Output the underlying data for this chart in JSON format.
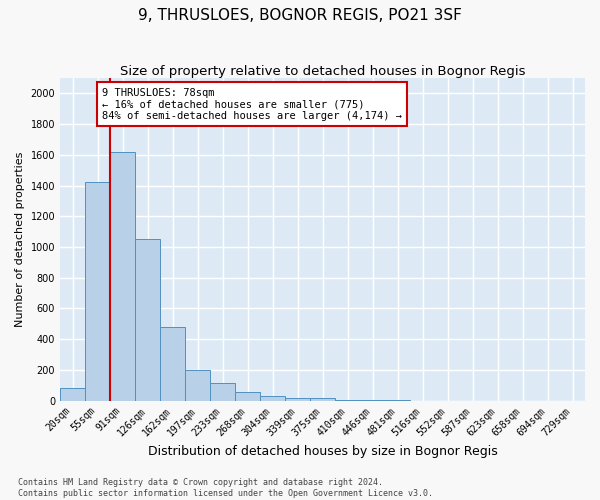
{
  "title": "9, THRUSLOES, BOGNOR REGIS, PO21 3SF",
  "subtitle": "Size of property relative to detached houses in Bognor Regis",
  "xlabel": "Distribution of detached houses by size in Bognor Regis",
  "ylabel": "Number of detached properties",
  "bar_labels": [
    "20sqm",
    "55sqm",
    "91sqm",
    "126sqm",
    "162sqm",
    "197sqm",
    "233sqm",
    "268sqm",
    "304sqm",
    "339sqm",
    "375sqm",
    "410sqm",
    "446sqm",
    "481sqm",
    "516sqm",
    "552sqm",
    "587sqm",
    "623sqm",
    "658sqm",
    "694sqm",
    "729sqm"
  ],
  "bar_values": [
    80,
    1420,
    1620,
    1050,
    480,
    200,
    115,
    55,
    30,
    20,
    15,
    7,
    3,
    2,
    1,
    1,
    1,
    0,
    0,
    0,
    0
  ],
  "bar_color": "#b8d0e8",
  "bar_edge_color": "#5090c0",
  "vline_color": "#cc0000",
  "vline_x_index": 1.5,
  "annotation_text": "9 THRUSLOES: 78sqm\n← 16% of detached houses are smaller (775)\n84% of semi-detached houses are larger (4,174) →",
  "annotation_box_color": "#ffffff",
  "annotation_box_edge": "#cc0000",
  "ylim_max": 2100,
  "yticks": [
    0,
    200,
    400,
    600,
    800,
    1000,
    1200,
    1400,
    1600,
    1800,
    2000
  ],
  "footer": "Contains HM Land Registry data © Crown copyright and database right 2024.\nContains public sector information licensed under the Open Government Licence v3.0.",
  "plot_bg_color": "#ddeaf5",
  "grid_color": "#ffffff",
  "fig_bg_color": "#f8f8f8",
  "title_fontsize": 11,
  "subtitle_fontsize": 9.5,
  "tick_fontsize": 7,
  "ylabel_fontsize": 8,
  "xlabel_fontsize": 9,
  "annotation_fontsize": 7.5,
  "footer_fontsize": 6
}
